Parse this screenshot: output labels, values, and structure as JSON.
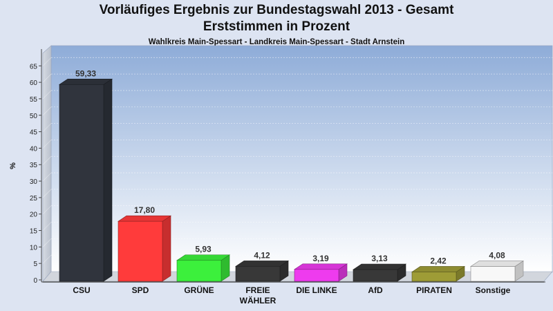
{
  "title": "Vorläufiges Ergebnis zur Bundestagswahl 2013 - Gesamt",
  "subtitle": "Erststimmen in Prozent",
  "subsubtitle": "Wahlkreis Main-Spessart - Landkreis Main-Spessart - Stadt Arnstein",
  "chart_data": {
    "type": "bar",
    "title": "Vorläufiges Ergebnis zur Bundestagswahl 2013 - Gesamt",
    "subtitle": "Erststimmen in Prozent",
    "ylabel": "%",
    "xlabel": "",
    "ylim": [
      0,
      68
    ],
    "yticks": [
      0,
      5,
      10,
      15,
      20,
      25,
      30,
      35,
      40,
      45,
      50,
      55,
      60,
      65
    ],
    "grid": true,
    "categories": [
      "CSU",
      "SPD",
      "GRÜNE",
      "FREIE WÄHLER",
      "DIE LINKE",
      "AfD",
      "PIRATEN",
      "Sonstige"
    ],
    "category_lines": [
      [
        "CSU"
      ],
      [
        "SPD"
      ],
      [
        "GRÜNE"
      ],
      [
        "FREIE",
        "WÄHLER"
      ],
      [
        "DIE LINKE"
      ],
      [
        "AfD"
      ],
      [
        "PIRATEN"
      ],
      [
        "Sonstige"
      ]
    ],
    "values": [
      59.33,
      17.8,
      5.93,
      4.12,
      3.19,
      3.13,
      2.42,
      4.08
    ],
    "value_labels": [
      "59,33",
      "17,80",
      "5,93",
      "4,12",
      "3,19",
      "3,13",
      "2,42",
      "4,08"
    ],
    "colors": [
      "#30343d",
      "#ff3b3b",
      "#3cf03c",
      "#383838",
      "#ee3bee",
      "#383838",
      "#9e9c36",
      "#f8f8f8"
    ]
  }
}
